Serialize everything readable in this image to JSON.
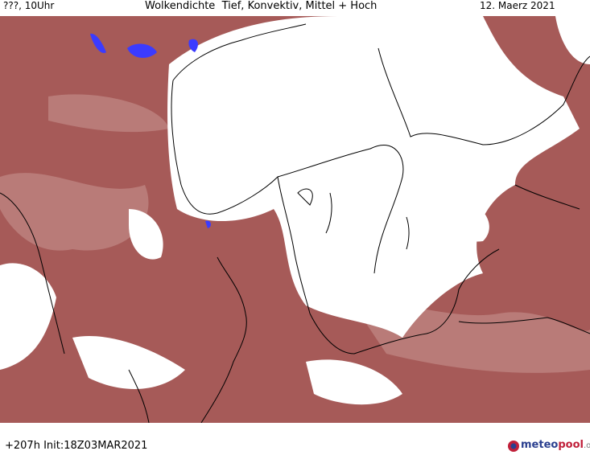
{
  "header": {
    "left": "???, 10Uhr",
    "title": "Wolkendichte  Tief, Konvektiv, Mittel + Hoch",
    "date": "12. Maerz 2021"
  },
  "footer": {
    "run": "+207h Init:18Z03MAR2021",
    "logo": {
      "part1": "meteo",
      "part2": "pool",
      "part3": ".org"
    }
  }
}
